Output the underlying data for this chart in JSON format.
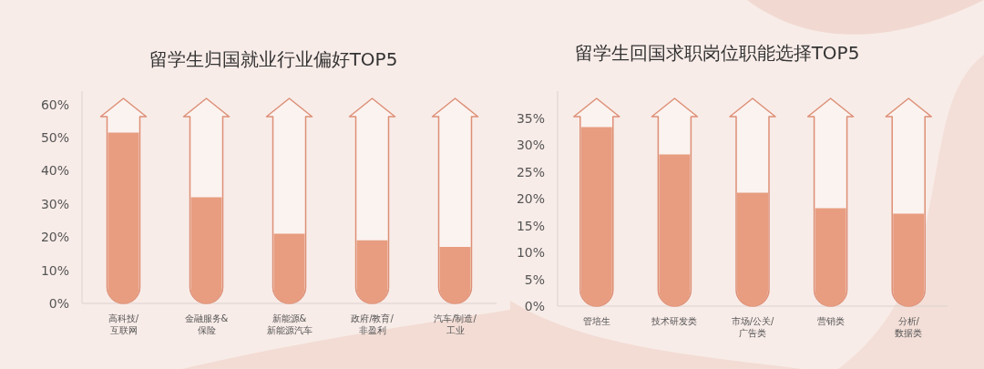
{
  "chart_data": [
    {
      "type": "bar",
      "title": "留学生归国就业行业偏好TOP5",
      "categories": [
        "高科技/互联网",
        "金融服务&保险",
        "新能源&新能源汽车",
        "政府/教育/非盈利",
        "汽车/制造/工业"
      ],
      "values": [
        51.5,
        32,
        21,
        19,
        17
      ],
      "color": "#e89d80",
      "ylim": [
        0,
        64
      ],
      "yticks": [
        {
          "value": 0,
          "label": "0%"
        },
        {
          "value": 10,
          "label": "10%"
        },
        {
          "value": 20,
          "label": "20%"
        },
        {
          "value": 30,
          "label": "30%"
        },
        {
          "value": 40,
          "label": "40%"
        },
        {
          "value": 50,
          "label": "50%"
        },
        {
          "value": 60,
          "label": "60%"
        }
      ],
      "grid": false
    },
    {
      "type": "bar",
      "title": "留学生回国求职岗位职能选择TOP5",
      "categories": [
        "管培生",
        "技术研发类",
        "市场/公关/广告类",
        "营销类",
        "分析/数据类"
      ],
      "values": [
        33.3,
        28.2,
        21.1,
        18.2,
        17.2
      ],
      "color": "#e89d80",
      "ylim": [
        0,
        40
      ],
      "yticks": [
        {
          "value": 0,
          "label": "0%"
        },
        {
          "value": 5,
          "label": "5%"
        },
        {
          "value": 10,
          "label": "10%"
        },
        {
          "value": 15,
          "label": "15%"
        },
        {
          "value": 20,
          "label": "20%"
        },
        {
          "value": 25,
          "label": "25%"
        },
        {
          "value": 30,
          "label": "30%"
        },
        {
          "value": 35,
          "label": "35%"
        }
      ],
      "grid": false
    }
  ]
}
